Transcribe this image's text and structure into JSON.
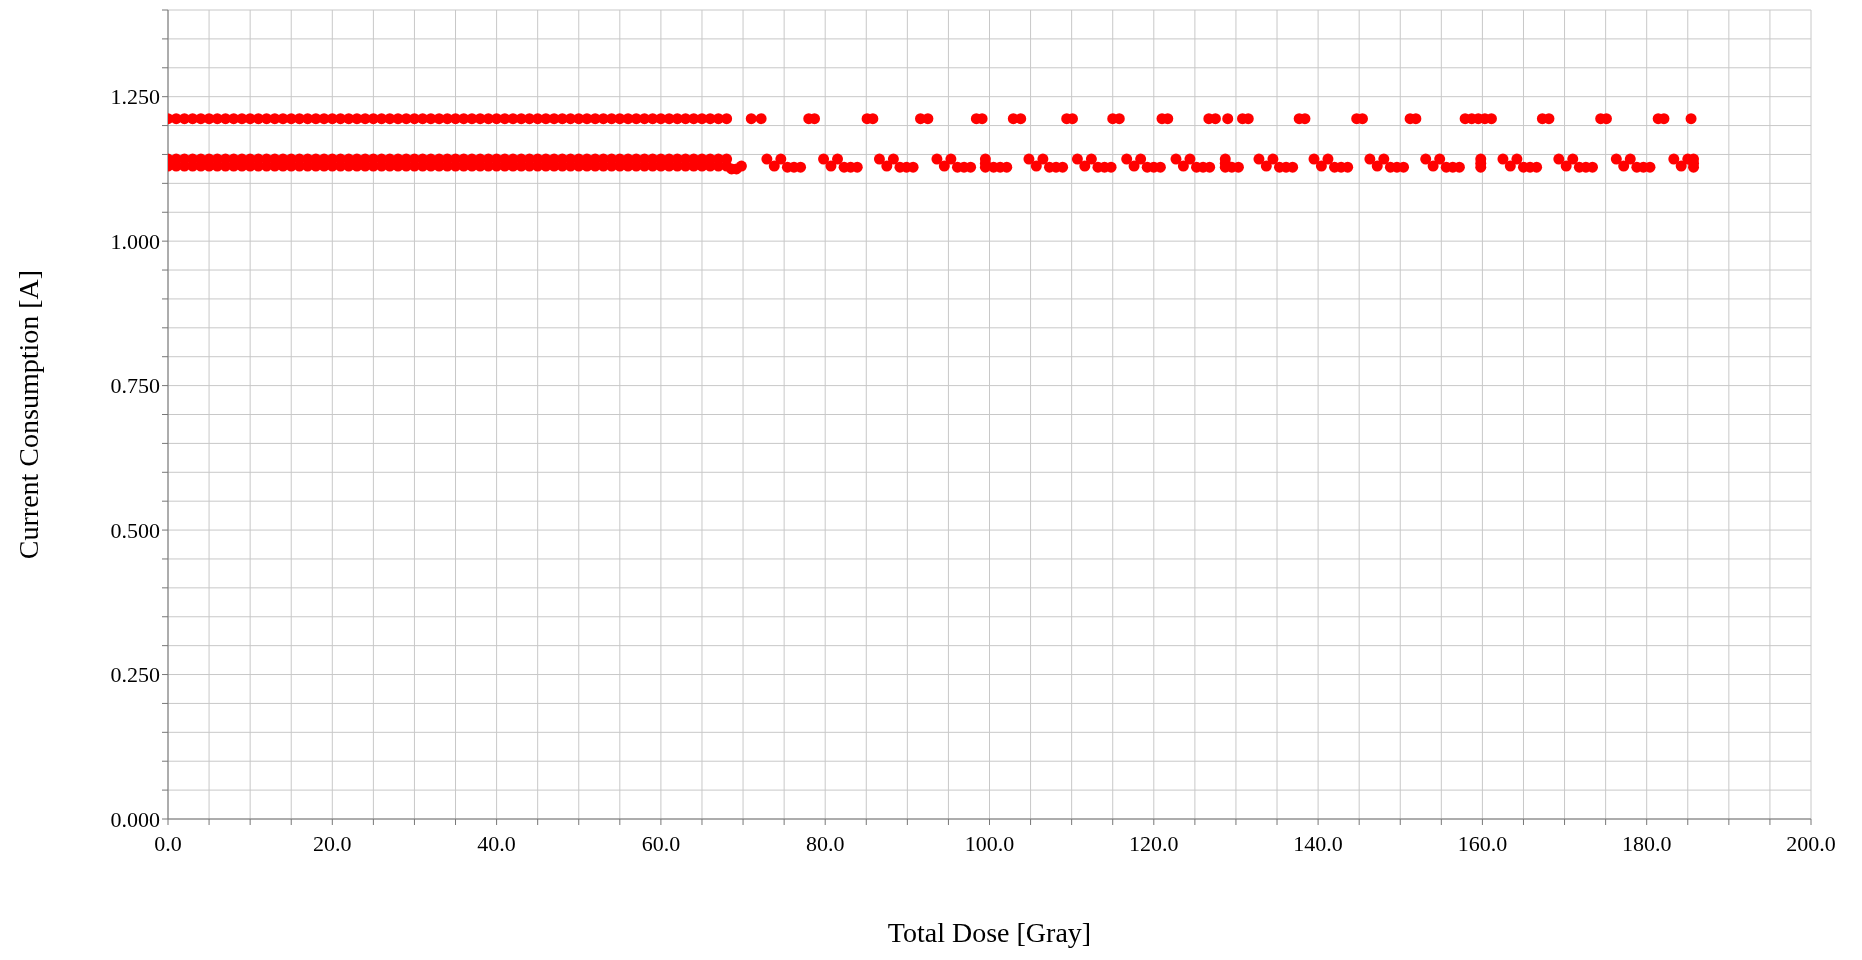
{
  "chart_data": {
    "type": "scatter",
    "xlabel": "Total Dose [Gray]",
    "ylabel": "Current Consumption [A]",
    "marker": "circle",
    "grid": true,
    "legend": false,
    "xlim": [
      0,
      200
    ],
    "ylim": [
      0,
      1.4
    ],
    "xticks": [
      {
        "value": 0,
        "label": "0.0"
      },
      {
        "value": 5,
        "label": null
      },
      {
        "value": 10,
        "label": null
      },
      {
        "value": 15,
        "label": null
      },
      {
        "value": 20,
        "label": "20.0"
      },
      {
        "value": 25,
        "label": null
      },
      {
        "value": 30,
        "label": null
      },
      {
        "value": 35,
        "label": null
      },
      {
        "value": 40,
        "label": "40.0"
      },
      {
        "value": 45,
        "label": null
      },
      {
        "value": 50,
        "label": null
      },
      {
        "value": 55,
        "label": null
      },
      {
        "value": 60,
        "label": "60.0"
      },
      {
        "value": 65,
        "label": null
      },
      {
        "value": 70,
        "label": null
      },
      {
        "value": 75,
        "label": null
      },
      {
        "value": 80,
        "label": "80.0"
      },
      {
        "value": 85,
        "label": null
      },
      {
        "value": 90,
        "label": null
      },
      {
        "value": 95,
        "label": null
      },
      {
        "value": 100,
        "label": "100.0"
      },
      {
        "value": 105,
        "label": null
      },
      {
        "value": 110,
        "label": null
      },
      {
        "value": 115,
        "label": null
      },
      {
        "value": 120,
        "label": "120.0"
      },
      {
        "value": 125,
        "label": null
      },
      {
        "value": 130,
        "label": null
      },
      {
        "value": 135,
        "label": null
      },
      {
        "value": 140,
        "label": "140.0"
      },
      {
        "value": 145,
        "label": null
      },
      {
        "value": 150,
        "label": null
      },
      {
        "value": 155,
        "label": null
      },
      {
        "value": 160,
        "label": "160.0"
      },
      {
        "value": 165,
        "label": null
      },
      {
        "value": 170,
        "label": null
      },
      {
        "value": 175,
        "label": null
      },
      {
        "value": 180,
        "label": "180.0"
      },
      {
        "value": 185,
        "label": null
      },
      {
        "value": 190,
        "label": null
      },
      {
        "value": 195,
        "label": null
      },
      {
        "value": 200,
        "label": "200.0"
      }
    ],
    "yticks": [
      {
        "value": 0,
        "label": "0.000"
      },
      {
        "value": 0.05,
        "label": null
      },
      {
        "value": 0.1,
        "label": null
      },
      {
        "value": 0.15,
        "label": null
      },
      {
        "value": 0.2,
        "label": null
      },
      {
        "value": 0.25,
        "label": "0.250"
      },
      {
        "value": 0.3,
        "label": null
      },
      {
        "value": 0.35,
        "label": null
      },
      {
        "value": 0.4,
        "label": null
      },
      {
        "value": 0.45,
        "label": null
      },
      {
        "value": 0.5,
        "label": "0.500"
      },
      {
        "value": 0.55,
        "label": null
      },
      {
        "value": 0.6,
        "label": null
      },
      {
        "value": 0.65,
        "label": null
      },
      {
        "value": 0.7,
        "label": null
      },
      {
        "value": 0.75,
        "label": "0.750"
      },
      {
        "value": 0.8,
        "label": null
      },
      {
        "value": 0.85,
        "label": null
      },
      {
        "value": 0.9,
        "label": null
      },
      {
        "value": 0.95,
        "label": null
      },
      {
        "value": 1,
        "label": "1.000"
      },
      {
        "value": 1.05,
        "label": null
      },
      {
        "value": 1.1,
        "label": null
      },
      {
        "value": 1.15,
        "label": null
      },
      {
        "value": 1.2,
        "label": null
      },
      {
        "value": 1.25,
        "label": "1.250"
      },
      {
        "value": 1.3,
        "label": null
      },
      {
        "value": 1.35,
        "label": null
      },
      {
        "value": 1.4,
        "label": null
      }
    ],
    "series": [
      {
        "color": "#ff0000",
        "x": [
          0,
          1,
          2,
          3,
          4,
          5,
          6,
          7,
          8,
          9,
          10,
          11,
          12,
          13,
          14,
          15,
          16,
          17,
          18,
          19,
          20,
          21,
          22,
          23,
          24,
          25,
          26,
          27,
          28,
          29,
          30,
          31,
          32,
          33,
          34,
          35,
          36,
          37,
          38,
          39,
          40,
          41,
          42,
          43,
          44,
          45,
          46,
          47,
          48,
          49,
          50,
          51,
          52,
          53,
          54,
          55,
          56,
          57,
          58,
          59,
          60,
          61,
          62,
          63,
          64,
          65,
          66,
          67,
          68
        ],
        "values": [
          1.212,
          1.212,
          1.212,
          1.212,
          1.212,
          1.212,
          1.212,
          1.212,
          1.212,
          1.212,
          1.212,
          1.212,
          1.212,
          1.212,
          1.212,
          1.212,
          1.212,
          1.212,
          1.212,
          1.212,
          1.212,
          1.212,
          1.212,
          1.212,
          1.212,
          1.212,
          1.212,
          1.212,
          1.212,
          1.212,
          1.212,
          1.212,
          1.212,
          1.212,
          1.212,
          1.212,
          1.212,
          1.212,
          1.212,
          1.212,
          1.212,
          1.212,
          1.212,
          1.212,
          1.212,
          1.212,
          1.212,
          1.212,
          1.212,
          1.212,
          1.212,
          1.212,
          1.212,
          1.212,
          1.212,
          1.212,
          1.212,
          1.212,
          1.212,
          1.212,
          1.212,
          1.212,
          1.212,
          1.212,
          1.212,
          1.212,
          1.212,
          1.212,
          1.212
        ]
      },
      {
        "color": "#ff0000",
        "x": [
          0,
          1,
          2,
          3,
          4,
          5,
          6,
          7,
          8,
          9,
          10,
          11,
          12,
          13,
          14,
          15,
          16,
          17,
          18,
          19,
          20,
          21,
          22,
          23,
          24,
          25,
          26,
          27,
          28,
          29,
          30,
          31,
          32,
          33,
          34,
          35,
          36,
          37,
          38,
          39,
          40,
          41,
          42,
          43,
          44,
          45,
          46,
          47,
          48,
          49,
          50,
          51,
          52,
          53,
          54,
          55,
          56,
          57,
          58,
          59,
          60,
          61,
          62,
          63,
          64,
          65,
          66,
          67,
          68
        ],
        "values": [
          1.142,
          1.142,
          1.142,
          1.142,
          1.142,
          1.142,
          1.142,
          1.142,
          1.142,
          1.142,
          1.142,
          1.142,
          1.142,
          1.142,
          1.142,
          1.142,
          1.142,
          1.142,
          1.142,
          1.142,
          1.142,
          1.142,
          1.142,
          1.142,
          1.142,
          1.142,
          1.142,
          1.142,
          1.142,
          1.142,
          1.142,
          1.142,
          1.142,
          1.142,
          1.142,
          1.142,
          1.142,
          1.142,
          1.142,
          1.142,
          1.142,
          1.142,
          1.142,
          1.142,
          1.142,
          1.142,
          1.142,
          1.142,
          1.142,
          1.142,
          1.142,
          1.142,
          1.142,
          1.142,
          1.142,
          1.142,
          1.142,
          1.142,
          1.142,
          1.142,
          1.142,
          1.142,
          1.142,
          1.142,
          1.142,
          1.142,
          1.142,
          1.142,
          1.142
        ]
      },
      {
        "color": "#ff0000",
        "x": [
          0,
          1,
          2,
          3,
          4,
          5,
          6,
          7,
          8,
          9,
          10,
          11,
          12,
          13,
          14,
          15,
          16,
          17,
          18,
          19,
          20,
          21,
          22,
          23,
          24,
          25,
          26,
          27,
          28,
          29,
          30,
          31,
          32,
          33,
          34,
          35,
          36,
          37,
          38,
          39,
          40,
          41,
          42,
          43,
          44,
          45,
          46,
          47,
          48,
          49,
          50,
          51,
          52,
          53,
          54,
          55,
          56,
          57,
          58,
          59,
          60,
          61,
          62,
          63,
          64,
          65,
          66,
          67,
          68
        ],
        "values": [
          1.13,
          1.13,
          1.13,
          1.13,
          1.13,
          1.13,
          1.13,
          1.13,
          1.13,
          1.13,
          1.13,
          1.13,
          1.13,
          1.13,
          1.13,
          1.13,
          1.13,
          1.13,
          1.13,
          1.13,
          1.13,
          1.13,
          1.13,
          1.13,
          1.13,
          1.13,
          1.13,
          1.13,
          1.13,
          1.13,
          1.13,
          1.13,
          1.13,
          1.13,
          1.13,
          1.13,
          1.13,
          1.13,
          1.13,
          1.13,
          1.13,
          1.13,
          1.13,
          1.13,
          1.13,
          1.13,
          1.13,
          1.13,
          1.13,
          1.13,
          1.13,
          1.13,
          1.13,
          1.13,
          1.13,
          1.13,
          1.13,
          1.13,
          1.13,
          1.13,
          1.13,
          1.13,
          1.13,
          1.13,
          1.13,
          1.13,
          1.13,
          1.13,
          1.13
        ]
      },
      {
        "color": "#ff0000",
        "x": [
          68.6,
          69.2,
          69.8
        ],
        "values": [
          1.125,
          1.125,
          1.13
        ]
      },
      {
        "color": "#ff0000",
        "x": [
          71.0,
          72.2,
          78.0,
          78.7,
          85.1,
          85.8,
          91.6,
          92.5,
          98.4,
          99.1,
          102.9,
          103.8,
          109.4,
          110.1,
          115.0,
          115.8,
          121.0,
          121.7,
          126.7,
          127.5,
          129.0,
          130.8,
          131.5,
          137.7,
          138.4,
          144.7,
          145.4,
          151.2,
          151.9,
          157.9,
          158.7,
          159.5,
          160.3,
          161.1,
          167.3,
          168.1,
          174.4,
          175.1,
          181.4,
          182.1,
          185.4
        ],
        "values": [
          1.212,
          1.212,
          1.212,
          1.212,
          1.212,
          1.212,
          1.212,
          1.212,
          1.212,
          1.212,
          1.212,
          1.212,
          1.212,
          1.212,
          1.212,
          1.212,
          1.212,
          1.212,
          1.212,
          1.212,
          1.212,
          1.212,
          1.212,
          1.212,
          1.212,
          1.212,
          1.212,
          1.212,
          1.212,
          1.212,
          1.212,
          1.212,
          1.212,
          1.212,
          1.212,
          1.212,
          1.212,
          1.212,
          1.212,
          1.212,
          1.212
        ]
      },
      {
        "color": "#ff0000",
        "x": [
          72.9,
          73.8,
          74.6,
          75.4,
          76.2,
          77.0,
          79.8,
          80.7,
          81.5,
          82.3,
          83.1,
          83.9,
          86.6,
          87.5,
          88.3,
          89.1,
          89.9,
          90.7,
          93.6,
          94.5,
          95.3,
          96.1,
          96.9,
          97.7,
          99.5,
          99.5,
          99.5,
          100.5,
          101.3,
          102.1,
          104.8,
          105.7,
          106.5,
          107.3,
          108.1,
          108.9,
          110.7,
          111.6,
          112.4,
          113.2,
          114.0,
          114.8,
          116.7,
          117.6,
          118.4,
          119.2,
          120.0,
          120.8,
          122.7,
          123.6,
          124.4,
          125.2,
          126.0,
          126.8,
          128.7,
          128.7,
          128.7,
          129.5,
          130.3,
          132.8,
          133.7,
          134.5,
          135.3,
          136.1,
          136.9,
          139.5,
          140.4,
          141.2,
          142.0,
          142.8,
          143.6,
          146.3,
          147.2,
          148.0,
          148.8,
          149.6,
          150.4,
          153.1,
          154.0,
          154.8,
          155.6,
          156.4,
          157.2,
          159.8,
          159.8,
          159.8,
          162.5,
          163.4,
          164.2,
          165.0,
          165.8,
          166.6,
          169.3,
          170.2,
          171.0,
          171.8,
          172.6,
          173.4,
          176.3,
          177.2,
          178.0,
          178.8,
          179.6,
          180.4,
          183.3,
          184.2,
          185.0,
          185.7,
          185.7,
          185.7
        ],
        "values": [
          1.142,
          1.13,
          1.142,
          1.128,
          1.128,
          1.128,
          1.142,
          1.13,
          1.142,
          1.128,
          1.128,
          1.128,
          1.142,
          1.13,
          1.142,
          1.128,
          1.128,
          1.128,
          1.142,
          1.13,
          1.142,
          1.128,
          1.128,
          1.128,
          1.142,
          1.135,
          1.128,
          1.128,
          1.128,
          1.128,
          1.142,
          1.13,
          1.142,
          1.128,
          1.128,
          1.128,
          1.142,
          1.13,
          1.142,
          1.128,
          1.128,
          1.128,
          1.142,
          1.13,
          1.142,
          1.128,
          1.128,
          1.128,
          1.142,
          1.13,
          1.142,
          1.128,
          1.128,
          1.128,
          1.142,
          1.135,
          1.128,
          1.128,
          1.128,
          1.142,
          1.13,
          1.142,
          1.128,
          1.128,
          1.128,
          1.142,
          1.13,
          1.142,
          1.128,
          1.128,
          1.128,
          1.142,
          1.13,
          1.142,
          1.128,
          1.128,
          1.128,
          1.142,
          1.13,
          1.142,
          1.128,
          1.128,
          1.128,
          1.142,
          1.135,
          1.128,
          1.142,
          1.13,
          1.142,
          1.128,
          1.128,
          1.128,
          1.142,
          1.13,
          1.142,
          1.128,
          1.128,
          1.128,
          1.142,
          1.13,
          1.142,
          1.128,
          1.128,
          1.128,
          1.142,
          1.13,
          1.142,
          1.142,
          1.135,
          1.128
        ]
      }
    ]
  }
}
